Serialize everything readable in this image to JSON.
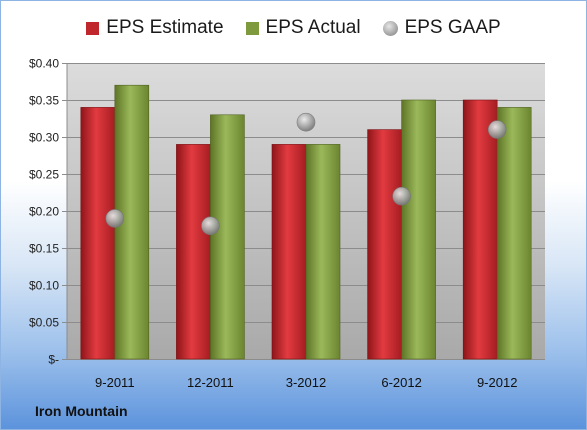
{
  "chart_data": {
    "type": "bar",
    "categories": [
      "9-2011",
      "12-2011",
      "3-2012",
      "6-2012",
      "9-2012"
    ],
    "series": [
      {
        "name": "EPS Estimate",
        "kind": "bar",
        "color": "#c0272d",
        "values": [
          0.34,
          0.29,
          0.29,
          0.31,
          0.35
        ]
      },
      {
        "name": "EPS Actual",
        "kind": "bar",
        "color": "#7f9a3c",
        "values": [
          0.37,
          0.33,
          0.29,
          0.35,
          0.34
        ]
      },
      {
        "name": "EPS GAAP",
        "kind": "point",
        "color": "#9b9b9b",
        "values": [
          0.19,
          0.18,
          0.32,
          0.22,
          0.31
        ]
      }
    ],
    "ylim": [
      0,
      0.4
    ],
    "yticks": [
      0,
      0.05,
      0.1,
      0.15,
      0.2,
      0.25,
      0.3,
      0.35,
      0.4
    ],
    "ytick_labels": [
      "$-",
      "$0.05",
      "$0.10",
      "$0.15",
      "$0.20",
      "$0.25",
      "$0.30",
      "$0.35",
      "$0.40"
    ],
    "grid": true,
    "legend_position": "top"
  },
  "footer": {
    "company": "Iron Mountain"
  }
}
